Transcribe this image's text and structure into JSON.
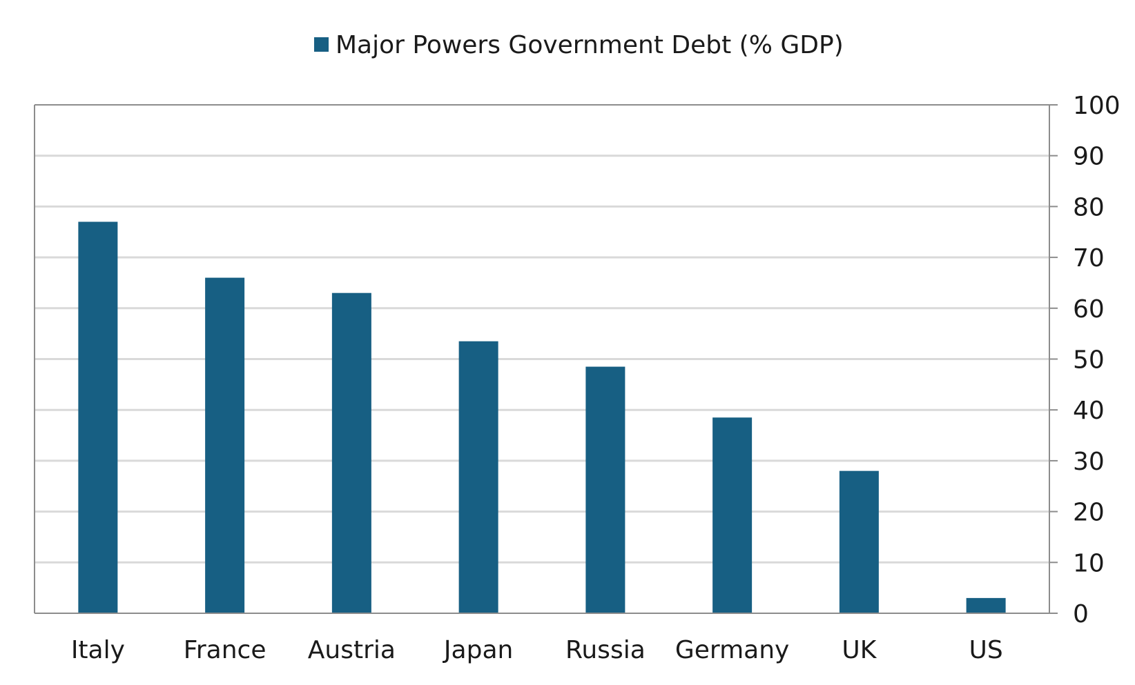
{
  "chart_data": {
    "type": "bar",
    "title": "",
    "legend": {
      "position": "top-center",
      "entries": [
        "Major Powers Government Debt (% GDP)"
      ]
    },
    "categories": [
      "Italy",
      "France",
      "Austria",
      "Japan",
      "Russia",
      "Germany",
      "UK",
      "US"
    ],
    "series": [
      {
        "name": "Major Powers Government Debt (% GDP)",
        "values": [
          77,
          66,
          63,
          53.5,
          48.5,
          38.5,
          28,
          3
        ],
        "color": "#175f83"
      }
    ],
    "xlabel": "",
    "ylabel": "",
    "ylim": [
      0,
      100
    ],
    "yticks": [
      "0",
      "10",
      "20",
      "30",
      "40",
      "50",
      "60",
      "70",
      "80",
      "90",
      "100"
    ],
    "y_axis_side": "right",
    "grid": true,
    "colors": {
      "bar": "#175f83",
      "grid": "#d9d9d9",
      "axis": "#8c8c8c"
    }
  }
}
